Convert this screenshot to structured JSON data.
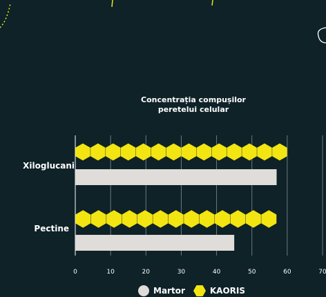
{
  "colors": {
    "background": "#0e2228",
    "accent": "#f2e512",
    "martor": "#e0dcd9",
    "grid": "#6b7b80",
    "text": "#ffffff"
  },
  "chart_data": {
    "type": "bar",
    "orientation": "horizontal",
    "title_line1": "Concentrația compușilor",
    "title_line2": "peretelui celular",
    "categories": [
      "Xiloglucani",
      "Pectine"
    ],
    "series": [
      {
        "name": "KAORIS",
        "values": [
          60,
          57
        ],
        "marker": "hexagon-chain"
      },
      {
        "name": "Martor",
        "values": [
          57,
          45
        ],
        "marker": "bar"
      }
    ],
    "xlim": [
      0,
      70
    ],
    "xticks": [
      "0",
      "10",
      "20",
      "30",
      "40",
      "50",
      "60",
      "70"
    ],
    "grid": true,
    "legend": {
      "position": "bottom",
      "items": [
        {
          "label": "Martor",
          "marker": "circle"
        },
        {
          "label": "KAORIS",
          "marker": "hexagon"
        }
      ]
    }
  }
}
